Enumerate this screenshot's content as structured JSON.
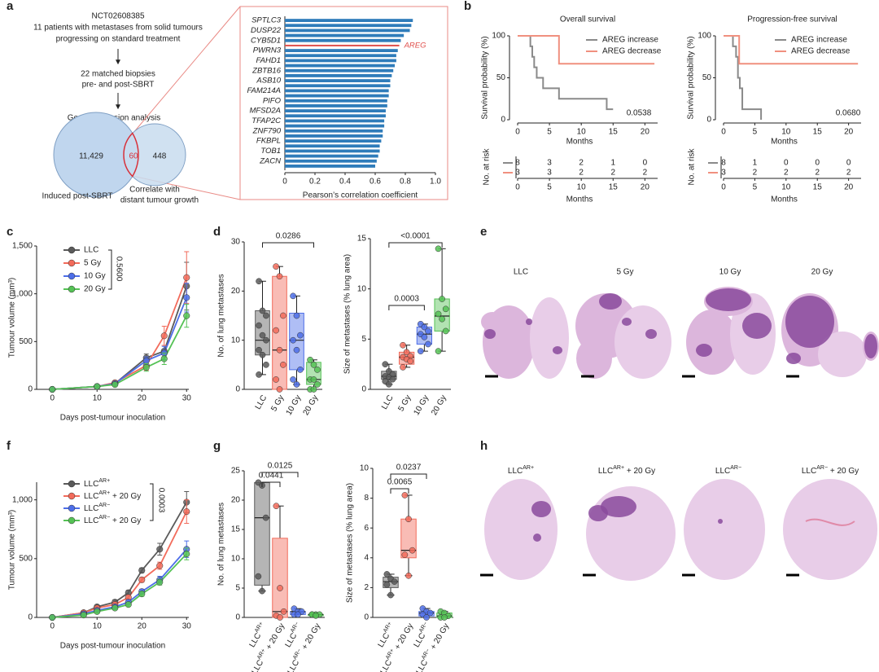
{
  "panel_labels": [
    "a",
    "b",
    "c",
    "d",
    "e",
    "f",
    "g",
    "h"
  ],
  "flow": {
    "steps": [
      "NCT02608385",
      "11 patients with metastases from solid tumours",
      "progressing on standard treatment",
      "22 matched biopsies",
      "pre- and post-SBRT",
      "Gene expression analysis"
    ],
    "venn": {
      "left": "11,429",
      "overlap": "60",
      "right": "448",
      "left_label": "Induced post-SBRT",
      "right_label": [
        "Correlate with",
        "distant tumour growth"
      ]
    }
  },
  "chart_data": [
    {
      "type": "hbar",
      "categories": [
        "SPTLC3",
        null,
        "DUSP22",
        null,
        "CYB5D1",
        "AREG",
        "PWRN3",
        null,
        "FAHD1",
        null,
        "ZBTB16",
        null,
        "ASB10",
        null,
        "FAM214A",
        null,
        "PIFO",
        null,
        "MFSD2A",
        null,
        "TFAP2C",
        null,
        "ZNF790",
        null,
        "FKBPL",
        null,
        "TOB1",
        null,
        "ZACN",
        null
      ],
      "values": [
        0.85,
        0.84,
        0.83,
        0.79,
        0.77,
        0.76,
        0.75,
        0.74,
        0.74,
        0.73,
        0.72,
        0.71,
        0.7,
        0.7,
        0.69,
        0.69,
        0.68,
        0.68,
        0.67,
        0.67,
        0.66,
        0.66,
        0.65,
        0.65,
        0.64,
        0.63,
        0.63,
        0.62,
        0.61,
        0.6
      ],
      "color": "#2f7cba",
      "highlight": "AREG",
      "highlight_color": "#e0504c",
      "xlim": [
        0,
        1
      ],
      "xticks": [
        0,
        0.2,
        0.4,
        0.6,
        0.8,
        {
          "value": 1,
          "label": "1.0"
        }
      ],
      "xlabel": "Pearson’s correlation coefficient"
    },
    {
      "type": "km",
      "title": "Overall survival",
      "ylabel": "Survival probability (%)",
      "xlabel": "Months",
      "xlim": [
        0,
        22
      ],
      "xticks": [
        0,
        5,
        10,
        15,
        20
      ],
      "ylim": [
        0,
        100
      ],
      "yticks": [
        0,
        50,
        100
      ],
      "series": [
        {
          "name": "AREG increase",
          "color": "#8a8a8a",
          "x": [
            0,
            2,
            2,
            2.3,
            2.3,
            2.6,
            2.6,
            3,
            3,
            4,
            4,
            6.5,
            6.5,
            14,
            14,
            15
          ],
          "values": [
            100,
            100,
            87.5,
            87.5,
            75,
            75,
            62.5,
            62.5,
            50,
            50,
            37.5,
            37.5,
            25,
            25,
            12.5,
            12.5
          ]
        },
        {
          "name": "AREG decrease",
          "color": "#f0907f",
          "x": [
            0,
            6.5,
            6.5,
            21.5
          ],
          "values": [
            100,
            100,
            66.7,
            66.7
          ]
        }
      ],
      "p_value": "0.0538",
      "risk_table": {
        "label": "No. at risk",
        "xlabel": "Months",
        "xticks": [
          0,
          5,
          10,
          15,
          20
        ],
        "rows": [
          [
            8,
            3,
            2,
            1,
            0
          ],
          [
            3,
            3,
            2,
            2,
            2
          ]
        ]
      }
    },
    {
      "type": "km",
      "title": "Progression-free survival",
      "ylabel": "Survival probability (%)",
      "xlabel": "Months",
      "xlim": [
        0,
        22
      ],
      "xticks": [
        0,
        5,
        10,
        15,
        20
      ],
      "ylim": [
        0,
        100
      ],
      "yticks": [
        0,
        50,
        100
      ],
      "series": [
        {
          "name": "AREG increase",
          "color": "#8a8a8a",
          "x": [
            0,
            1.5,
            1.5,
            2,
            2,
            2.3,
            2.3,
            2.6,
            2.6,
            3,
            3,
            6,
            6
          ],
          "values": [
            100,
            100,
            87.5,
            87.5,
            75,
            75,
            50,
            50,
            37.5,
            37.5,
            12.5,
            12.5,
            0
          ]
        },
        {
          "name": "AREG decrease",
          "color": "#f0907f",
          "x": [
            0,
            2.5,
            2.5,
            21.5
          ],
          "values": [
            100,
            100,
            66.7,
            66.7
          ]
        }
      ],
      "p_value": "0.0680",
      "risk_table": {
        "label": "No. at risk",
        "xlabel": "Months",
        "xticks": [
          0,
          5,
          10,
          15,
          20
        ],
        "rows": [
          [
            8,
            1,
            0,
            0,
            0
          ],
          [
            3,
            2,
            2,
            2,
            2
          ]
        ]
      }
    },
    {
      "type": "line",
      "x": [
        0,
        10,
        14,
        21,
        25,
        30
      ],
      "xlim": [
        -3.5,
        30.5
      ],
      "xticks": [
        0,
        10,
        20,
        30
      ],
      "ylim": [
        0,
        1500
      ],
      "yticks": [
        0,
        500,
        {
          "value": 1000,
          "label": "1,000"
        },
        {
          "value": 1500,
          "label": "1,500"
        }
      ],
      "xlabel": "Days post-tumour inoculation",
      "ylabel": "Tumour volume (mm³)",
      "p_value": "0.5600",
      "series": [
        {
          "name": "LLC",
          "color": "#5a5a5a",
          "values": [
            0,
            30,
            60,
            330,
            400,
            1080
          ],
          "errors": [
            0,
            10,
            15,
            40,
            60,
            250
          ]
        },
        {
          "name": "5 Gy",
          "color": "#f26b5b",
          "values": [
            0,
            30,
            70,
            250,
            560,
            1170
          ],
          "errors": [
            0,
            10,
            15,
            50,
            100,
            270
          ]
        },
        {
          "name": "10 Gy",
          "color": "#4d6ee8",
          "values": [
            0,
            30,
            60,
            300,
            380,
            960
          ],
          "errors": [
            0,
            10,
            15,
            40,
            70,
            150
          ]
        },
        {
          "name": "20 Gy",
          "color": "#55c255",
          "values": [
            0,
            30,
            50,
            230,
            320,
            770
          ],
          "errors": [
            0,
            10,
            15,
            40,
            60,
            120
          ]
        }
      ]
    },
    {
      "type": "box",
      "categories": [
        "LLC",
        "5 Gy",
        "10 Gy",
        "20 Gy"
      ],
      "colors": [
        "#5a5a5a",
        "#f26b5b",
        "#4d6ee8",
        "#55c255"
      ],
      "ylabel": "No. of lung metastases",
      "ylim": [
        0,
        30
      ],
      "yticks": [
        0,
        10,
        20,
        30
      ],
      "q1": [
        7,
        0,
        4,
        1
      ],
      "median": [
        10,
        8,
        10,
        2
      ],
      "q3": [
        16,
        23,
        15.5,
        5.5
      ],
      "min": [
        3,
        0,
        1,
        0
      ],
      "max": [
        22,
        25,
        19,
        6
      ],
      "points": [
        [
          22,
          16,
          15,
          13,
          11,
          10,
          8,
          7,
          5,
          3
        ],
        [
          25,
          23,
          15,
          12,
          8,
          5,
          2,
          0
        ],
        [
          19,
          15,
          11,
          10,
          8,
          4,
          2,
          1
        ],
        [
          6,
          5,
          4,
          2,
          2,
          1,
          0,
          0
        ]
      ],
      "p_values": [
        "0.0286"
      ]
    },
    {
      "type": "box",
      "categories": [
        "LLC",
        "5 Gy",
        "10 Gy",
        "20 Gy"
      ],
      "colors": [
        "#5a5a5a",
        "#f26b5b",
        "#4d6ee8",
        "#55c255"
      ],
      "ylabel": "Size of metastases (% lung area)",
      "ylim": [
        0,
        15
      ],
      "yticks": [
        0,
        5,
        10,
        15
      ],
      "q1": [
        1,
        2.5,
        4.5,
        5.8
      ],
      "median": [
        1.3,
        3.2,
        5.5,
        7.3
      ],
      "q3": [
        1.8,
        3.7,
        6.2,
        9
      ],
      "min": [
        0.5,
        2.2,
        3.8,
        3.8
      ],
      "max": [
        2.5,
        4.4,
        6.5,
        14
      ],
      "points": [
        [
          2.5,
          1.8,
          1.5,
          1.3,
          1.2,
          1,
          0.8,
          0.5
        ],
        [
          4.4,
          3.7,
          3.3,
          3.2,
          3,
          2.8,
          2.2
        ],
        [
          6.5,
          6.2,
          5.8,
          5.5,
          5.2,
          4.5,
          3.8
        ],
        [
          14,
          9,
          8,
          7.5,
          7,
          5.8,
          3.8
        ]
      ],
      "p_values": [
        "<0.0001",
        "0.0003"
      ]
    },
    {
      "type": "line",
      "x": [
        0,
        7,
        10,
        14,
        17,
        20,
        24,
        30
      ],
      "xlim": [
        -3.5,
        30.5
      ],
      "xticks": [
        0,
        10,
        20,
        30
      ],
      "ylim": [
        0,
        1150
      ],
      "yticks": [
        0,
        500,
        {
          "value": 1000,
          "label": "1,000"
        }
      ],
      "xlabel": "Days post-tumour inoculation",
      "ylabel": "Tumour volume (mm³)",
      "p_value": "0.0003",
      "series": [
        {
          "name": "LLCAR+",
          "color": "#5a5a5a",
          "values": [
            0,
            40,
            90,
            130,
            210,
            400,
            580,
            980
          ],
          "errors": [
            0,
            10,
            15,
            20,
            20,
            20,
            50,
            90
          ]
        },
        {
          "name": "LLCAR+ + 20 Gy",
          "color": "#f26b5b",
          "values": [
            0,
            40,
            80,
            110,
            170,
            320,
            440,
            900
          ],
          "errors": [
            0,
            10,
            15,
            20,
            20,
            20,
            30,
            100
          ]
        },
        {
          "name": "LLCAR−",
          "color": "#4d6ee8",
          "values": [
            0,
            30,
            60,
            90,
            130,
            220,
            320,
            580
          ],
          "errors": [
            0,
            10,
            10,
            15,
            15,
            20,
            30,
            70
          ]
        },
        {
          "name": "LLCAR− + 20 Gy",
          "color": "#55c255",
          "values": [
            0,
            20,
            50,
            80,
            110,
            200,
            300,
            540
          ],
          "errors": [
            0,
            10,
            10,
            15,
            15,
            20,
            25,
            50
          ]
        }
      ]
    },
    {
      "type": "box",
      "categories": [
        "LLCAR+",
        "LLCAR+ + 20 Gy",
        "LLCAR−",
        "LLCAR− + 20 Gy"
      ],
      "colors": [
        "#5a5a5a",
        "#f26b5b",
        "#4d6ee8",
        "#55c255"
      ],
      "ylabel": "No. of lung metastases",
      "ylim": [
        0,
        25
      ],
      "yticks": [
        0,
        5,
        10,
        15,
        20,
        25
      ],
      "q1": [
        5.5,
        0,
        0.5,
        0.3
      ],
      "median": [
        17,
        1,
        1,
        0.5
      ],
      "q3": [
        23,
        13.5,
        1,
        0.5
      ],
      "min": [
        4.5,
        0,
        0.5,
        0.3
      ],
      "max": [
        23,
        19,
        1.5,
        0.5
      ],
      "points": [
        [
          23,
          22.5,
          17,
          7,
          4.5
        ],
        [
          19,
          5,
          1,
          0.3,
          0
        ],
        [
          1.5,
          1,
          1,
          0.5,
          0.5
        ],
        [
          0.5,
          0.5,
          0.5,
          0.5,
          0.3
        ]
      ],
      "p_values": [
        "0.0125",
        "0.0441"
      ]
    },
    {
      "type": "box",
      "categories": [
        "LLCAR+",
        "LLCAR+ + 20 Gy",
        "LLCAR−",
        "LLCAR− + 20 Gy"
      ],
      "colors": [
        "#5a5a5a",
        "#f26b5b",
        "#4d6ee8",
        "#55c255"
      ],
      "ylabel": "Size of metastases (% lung area)",
      "ylim": [
        0,
        10
      ],
      "yticks": [
        0,
        2,
        4,
        6,
        8,
        10
      ],
      "q1": [
        2,
        4,
        0.1,
        0
      ],
      "median": [
        2.4,
        4.5,
        0.3,
        0.1
      ],
      "q3": [
        2.7,
        6.6,
        0.4,
        0.3
      ],
      "min": [
        1.5,
        2.8,
        0,
        0
      ],
      "max": [
        2.9,
        8.2,
        0.6,
        0.4
      ],
      "points": [
        [
          2.9,
          2.6,
          2.4,
          2.2,
          1.5
        ],
        [
          8.2,
          6.6,
          4.5,
          4.2,
          2.8
        ],
        [
          0.6,
          0.4,
          0.3,
          0.2,
          0
        ],
        [
          0.4,
          0.3,
          0.1,
          0,
          0
        ]
      ],
      "p_values": [
        "0.0237",
        "0.0065"
      ]
    }
  ],
  "images_e": {
    "labels": [
      "LLC",
      "5 Gy",
      "10 Gy",
      "20 Gy"
    ]
  },
  "images_h": {
    "labels": [
      "LLCAR+",
      "LLCAR+ + 20 Gy",
      "LLCAR−",
      "LLCAR− + 20 Gy"
    ]
  }
}
